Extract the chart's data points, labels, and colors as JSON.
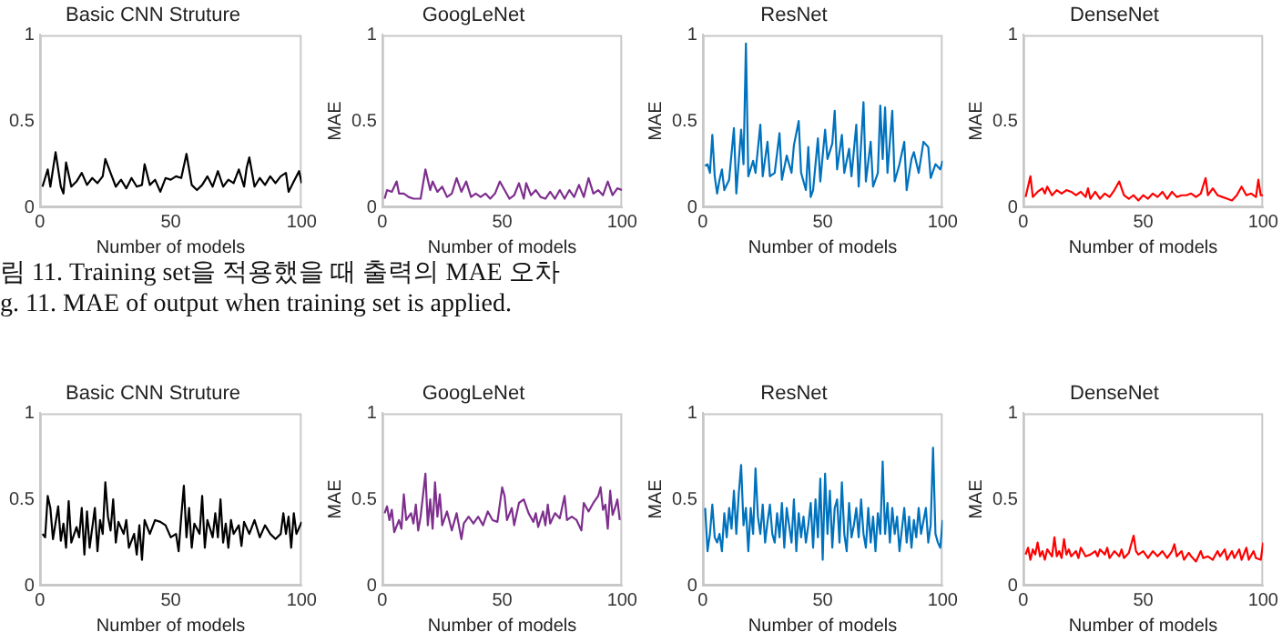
{
  "chart_data": [
    {
      "type": "line",
      "title": "Basic CNN Struture",
      "xlabel": "Number of models",
      "xlim": [
        0,
        100
      ],
      "xticks": [
        0,
        50,
        100
      ],
      "ylim": [
        0,
        1
      ],
      "yticks": [
        0,
        0.5,
        1
      ],
      "grid": false,
      "legend": false,
      "annotations": [
        "림 11. Training set을 적용했을 때 출력의 MAE 오차",
        "g. 11. MAE of output when training set is applied."
      ],
      "series": [
        {
          "color": "#000000",
          "x": [
            1,
            3,
            4,
            6,
            8,
            9,
            10,
            12,
            14,
            16,
            18,
            20,
            22,
            24,
            25,
            27,
            29,
            31,
            33,
            35,
            37,
            39,
            40,
            42,
            44,
            46,
            48,
            50,
            52,
            54,
            56,
            58,
            60,
            62,
            64,
            66,
            68,
            70,
            72,
            74,
            76,
            78,
            79,
            80,
            82,
            84,
            86,
            88,
            90,
            92,
            94,
            95,
            97,
            99,
            100
          ],
          "values": [
            0.12,
            0.22,
            0.12,
            0.32,
            0.12,
            0.08,
            0.26,
            0.12,
            0.15,
            0.2,
            0.13,
            0.17,
            0.14,
            0.18,
            0.28,
            0.2,
            0.12,
            0.16,
            0.11,
            0.17,
            0.12,
            0.13,
            0.25,
            0.13,
            0.16,
            0.09,
            0.17,
            0.16,
            0.18,
            0.17,
            0.31,
            0.13,
            0.1,
            0.13,
            0.18,
            0.12,
            0.21,
            0.12,
            0.16,
            0.14,
            0.22,
            0.12,
            0.23,
            0.29,
            0.12,
            0.17,
            0.13,
            0.18,
            0.14,
            0.18,
            0.2,
            0.09,
            0.15,
            0.21,
            0.14
          ]
        }
      ]
    },
    {
      "type": "line",
      "title": "GoogLeNet",
      "xlabel": "Number of models",
      "ylabel": "MAE",
      "xlim": [
        0,
        100
      ],
      "xticks": [
        0,
        50,
        100
      ],
      "ylim": [
        0,
        1
      ],
      "yticks": [
        0,
        0.5,
        1
      ],
      "grid": false,
      "legend": false,
      "series": [
        {
          "color": "#7e2f8e",
          "x": [
            1,
            2,
            4,
            6,
            7,
            9,
            11,
            13,
            16,
            18,
            20,
            21,
            23,
            25,
            27,
            29,
            31,
            33,
            35,
            37,
            39,
            41,
            43,
            45,
            47,
            49,
            51,
            53,
            55,
            57,
            59,
            60,
            62,
            64,
            66,
            68,
            70,
            72,
            74,
            76,
            78,
            80,
            82,
            84,
            86,
            88,
            90,
            92,
            94,
            96,
            98,
            100
          ],
          "values": [
            0.05,
            0.1,
            0.09,
            0.15,
            0.08,
            0.08,
            0.06,
            0.05,
            0.05,
            0.22,
            0.1,
            0.15,
            0.09,
            0.12,
            0.06,
            0.08,
            0.17,
            0.09,
            0.15,
            0.06,
            0.08,
            0.06,
            0.08,
            0.05,
            0.08,
            0.15,
            0.1,
            0.05,
            0.07,
            0.14,
            0.05,
            0.14,
            0.07,
            0.1,
            0.06,
            0.05,
            0.09,
            0.05,
            0.1,
            0.05,
            0.1,
            0.06,
            0.13,
            0.06,
            0.17,
            0.08,
            0.1,
            0.07,
            0.15,
            0.07,
            0.11,
            0.1
          ]
        }
      ]
    },
    {
      "type": "line",
      "title": "ResNet",
      "xlabel": "Number of models",
      "ylabel": "MAE",
      "xlim": [
        0,
        100
      ],
      "xticks": [
        0,
        50,
        100
      ],
      "ylim": [
        0,
        1
      ],
      "yticks": [
        0,
        0.5,
        1
      ],
      "grid": false,
      "legend": false,
      "series": [
        {
          "color": "#0072bd",
          "x": [
            1,
            2,
            3,
            4,
            5,
            6,
            7,
            8,
            9,
            11,
            13,
            14,
            16,
            17,
            18,
            19,
            21,
            22,
            24,
            25,
            27,
            28,
            30,
            32,
            33,
            35,
            37,
            38,
            40,
            41,
            43,
            44,
            45,
            46,
            48,
            49,
            51,
            52,
            54,
            55,
            56,
            58,
            59,
            61,
            62,
            64,
            65,
            67,
            68,
            70,
            71,
            73,
            74,
            75,
            76,
            77,
            79,
            80,
            82,
            84,
            85,
            87,
            88,
            90,
            92,
            94,
            95,
            97,
            99,
            100
          ],
          "values": [
            0.24,
            0.25,
            0.2,
            0.42,
            0.18,
            0.08,
            0.16,
            0.22,
            0.1,
            0.16,
            0.46,
            0.08,
            0.45,
            0.25,
            0.95,
            0.18,
            0.27,
            0.2,
            0.48,
            0.18,
            0.38,
            0.18,
            0.2,
            0.43,
            0.16,
            0.3,
            0.2,
            0.36,
            0.5,
            0.2,
            0.1,
            0.35,
            0.06,
            0.1,
            0.4,
            0.15,
            0.45,
            0.28,
            0.37,
            0.56,
            0.22,
            0.42,
            0.2,
            0.34,
            0.18,
            0.48,
            0.12,
            0.61,
            0.15,
            0.38,
            0.12,
            0.2,
            0.59,
            0.28,
            0.58,
            0.2,
            0.56,
            0.15,
            0.25,
            0.38,
            0.1,
            0.28,
            0.32,
            0.2,
            0.38,
            0.35,
            0.17,
            0.25,
            0.22,
            0.27
          ]
        }
      ]
    },
    {
      "type": "line",
      "title": "DenseNet",
      "xlabel": "Number of models",
      "ylabel": "MAE",
      "xlim": [
        0,
        100
      ],
      "xticks": [
        0,
        50,
        100
      ],
      "ylim": [
        0,
        1
      ],
      "yticks": [
        0,
        0.5,
        1
      ],
      "grid": false,
      "legend": false,
      "series": [
        {
          "color": "#ff0000",
          "x": [
            1,
            3,
            4,
            6,
            8,
            9,
            10,
            12,
            14,
            16,
            18,
            20,
            22,
            24,
            26,
            27,
            28,
            30,
            32,
            34,
            36,
            38,
            40,
            42,
            44,
            46,
            48,
            50,
            52,
            54,
            56,
            58,
            60,
            62,
            64,
            66,
            68,
            70,
            72,
            74,
            76,
            77,
            79,
            81,
            83,
            85,
            87,
            89,
            91,
            93,
            95,
            97,
            98,
            99,
            100
          ],
          "values": [
            0.06,
            0.18,
            0.06,
            0.09,
            0.11,
            0.08,
            0.12,
            0.07,
            0.1,
            0.08,
            0.1,
            0.09,
            0.07,
            0.09,
            0.06,
            0.11,
            0.05,
            0.09,
            0.05,
            0.08,
            0.06,
            0.1,
            0.15,
            0.07,
            0.05,
            0.07,
            0.04,
            0.07,
            0.05,
            0.08,
            0.06,
            0.09,
            0.05,
            0.09,
            0.06,
            0.07,
            0.07,
            0.08,
            0.06,
            0.08,
            0.17,
            0.07,
            0.11,
            0.07,
            0.06,
            0.05,
            0.04,
            0.07,
            0.12,
            0.07,
            0.08,
            0.06,
            0.16,
            0.07,
            0.07
          ]
        }
      ]
    },
    {
      "type": "line",
      "title": "Basic CNN Struture",
      "xlabel": "Number of models",
      "xlim": [
        0,
        100
      ],
      "xticks": [
        0,
        50,
        100
      ],
      "ylim": [
        0,
        1
      ],
      "yticks": [
        0,
        0.5,
        1
      ],
      "grid": false,
      "legend": false,
      "series": [
        {
          "color": "#000000",
          "x": [
            1,
            2,
            3,
            4,
            5,
            7,
            8,
            9,
            10,
            11,
            12,
            14,
            15,
            16,
            17,
            18,
            19,
            21,
            22,
            23,
            24,
            25,
            26,
            27,
            28,
            29,
            30,
            32,
            33,
            34,
            36,
            37,
            38,
            39,
            40,
            42,
            44,
            46,
            48,
            50,
            52,
            53,
            54,
            55,
            56,
            57,
            58,
            59,
            61,
            62,
            63,
            64,
            66,
            67,
            68,
            69,
            70,
            71,
            72,
            73,
            74,
            76,
            77,
            78,
            80,
            82,
            84,
            86,
            88,
            90,
            92,
            93,
            94,
            95,
            96,
            97,
            98,
            100
          ],
          "values": [
            0.3,
            0.28,
            0.52,
            0.45,
            0.27,
            0.46,
            0.26,
            0.36,
            0.22,
            0.49,
            0.25,
            0.34,
            0.28,
            0.45,
            0.18,
            0.43,
            0.22,
            0.45,
            0.2,
            0.38,
            0.3,
            0.6,
            0.4,
            0.32,
            0.5,
            0.25,
            0.37,
            0.3,
            0.38,
            0.22,
            0.3,
            0.18,
            0.35,
            0.15,
            0.38,
            0.3,
            0.38,
            0.37,
            0.35,
            0.28,
            0.3,
            0.2,
            0.4,
            0.58,
            0.28,
            0.45,
            0.22,
            0.36,
            0.3,
            0.52,
            0.22,
            0.38,
            0.28,
            0.42,
            0.28,
            0.5,
            0.25,
            0.36,
            0.22,
            0.38,
            0.3,
            0.35,
            0.23,
            0.37,
            0.3,
            0.38,
            0.28,
            0.35,
            0.3,
            0.27,
            0.3,
            0.42,
            0.3,
            0.4,
            0.22,
            0.42,
            0.3,
            0.37
          ]
        }
      ]
    },
    {
      "type": "line",
      "title": "GoogLeNet",
      "xlabel": "Number of models",
      "ylabel": "MAE",
      "xlim": [
        0,
        100
      ],
      "xticks": [
        0,
        50,
        100
      ],
      "ylim": [
        0,
        1
      ],
      "yticks": [
        0,
        0.5,
        1
      ],
      "grid": false,
      "legend": false,
      "series": [
        {
          "color": "#7e2f8e",
          "x": [
            1,
            2,
            3,
            4,
            5,
            7,
            8,
            9,
            10,
            12,
            13,
            14,
            15,
            16,
            18,
            19,
            20,
            21,
            22,
            23,
            24,
            25,
            27,
            29,
            31,
            33,
            34,
            36,
            38,
            40,
            42,
            44,
            46,
            48,
            50,
            51,
            52,
            54,
            55,
            57,
            59,
            61,
            63,
            64,
            65,
            67,
            68,
            69,
            70,
            72,
            74,
            76,
            77,
            79,
            81,
            83,
            84,
            86,
            88,
            90,
            91,
            92,
            93,
            94,
            95,
            96,
            97,
            98,
            99
          ],
          "values": [
            0.42,
            0.46,
            0.38,
            0.44,
            0.31,
            0.38,
            0.33,
            0.53,
            0.38,
            0.42,
            0.36,
            0.47,
            0.32,
            0.4,
            0.65,
            0.35,
            0.5,
            0.33,
            0.6,
            0.4,
            0.53,
            0.35,
            0.43,
            0.32,
            0.42,
            0.27,
            0.36,
            0.4,
            0.36,
            0.4,
            0.35,
            0.43,
            0.38,
            0.37,
            0.57,
            0.52,
            0.38,
            0.45,
            0.35,
            0.48,
            0.5,
            0.42,
            0.37,
            0.42,
            0.34,
            0.43,
            0.35,
            0.47,
            0.36,
            0.42,
            0.39,
            0.52,
            0.38,
            0.4,
            0.38,
            0.32,
            0.48,
            0.43,
            0.48,
            0.52,
            0.57,
            0.44,
            0.47,
            0.33,
            0.55,
            0.41,
            0.45,
            0.5,
            0.38
          ]
        }
      ]
    },
    {
      "type": "line",
      "title": "ResNet",
      "xlabel": "Number of models",
      "ylabel": "MAE",
      "xlim": [
        0,
        100
      ],
      "xticks": [
        0,
        50,
        100
      ],
      "ylim": [
        0,
        1
      ],
      "yticks": [
        0,
        0.5,
        1
      ],
      "grid": false,
      "legend": false,
      "series": [
        {
          "color": "#0072bd",
          "x": [
            1,
            2,
            3,
            4,
            5,
            6,
            7,
            8,
            9,
            10,
            11,
            12,
            13,
            14,
            15,
            16,
            17,
            18,
            19,
            20,
            21,
            22,
            23,
            24,
            25,
            26,
            27,
            28,
            29,
            30,
            31,
            32,
            33,
            34,
            35,
            36,
            37,
            38,
            39,
            40,
            41,
            42,
            43,
            44,
            45,
            46,
            47,
            48,
            49,
            50,
            51,
            52,
            53,
            54,
            55,
            56,
            57,
            58,
            59,
            60,
            61,
            62,
            63,
            64,
            65,
            66,
            67,
            68,
            69,
            70,
            71,
            72,
            73,
            74,
            75,
            76,
            77,
            78,
            79,
            80,
            81,
            82,
            84,
            85,
            86,
            87,
            88,
            89,
            90,
            91,
            93,
            94,
            95,
            96,
            97,
            98,
            99,
            100
          ],
          "values": [
            0.45,
            0.2,
            0.3,
            0.47,
            0.28,
            0.25,
            0.3,
            0.2,
            0.42,
            0.28,
            0.45,
            0.33,
            0.55,
            0.3,
            0.53,
            0.7,
            0.35,
            0.45,
            0.2,
            0.45,
            0.3,
            0.68,
            0.4,
            0.3,
            0.47,
            0.25,
            0.37,
            0.47,
            0.3,
            0.25,
            0.42,
            0.28,
            0.48,
            0.22,
            0.45,
            0.35,
            0.25,
            0.5,
            0.2,
            0.42,
            0.28,
            0.4,
            0.25,
            0.35,
            0.48,
            0.22,
            0.5,
            0.28,
            0.62,
            0.15,
            0.65,
            0.3,
            0.55,
            0.22,
            0.45,
            0.5,
            0.25,
            0.6,
            0.3,
            0.2,
            0.48,
            0.28,
            0.35,
            0.45,
            0.28,
            0.5,
            0.3,
            0.22,
            0.45,
            0.25,
            0.4,
            0.2,
            0.42,
            0.3,
            0.72,
            0.3,
            0.48,
            0.25,
            0.45,
            0.3,
            0.4,
            0.2,
            0.45,
            0.25,
            0.4,
            0.22,
            0.38,
            0.28,
            0.45,
            0.3,
            0.45,
            0.25,
            0.35,
            0.8,
            0.3,
            0.25,
            0.22,
            0.38
          ]
        }
      ]
    },
    {
      "type": "line",
      "title": "DenseNet",
      "xlabel": "Number of models",
      "ylabel": "MAE",
      "xlim": [
        0,
        100
      ],
      "xticks": [
        0,
        50,
        100
      ],
      "ylim": [
        0,
        1
      ],
      "yticks": [
        0,
        0.5,
        1
      ],
      "grid": false,
      "legend": false,
      "series": [
        {
          "color": "#ff0000",
          "x": [
            1,
            2,
            3,
            4,
            5,
            6,
            7,
            8,
            9,
            10,
            12,
            13,
            14,
            15,
            16,
            17,
            18,
            19,
            20,
            22,
            23,
            24,
            26,
            28,
            30,
            31,
            32,
            34,
            35,
            36,
            38,
            40,
            41,
            42,
            44,
            46,
            47,
            48,
            50,
            52,
            54,
            56,
            58,
            60,
            62,
            63,
            64,
            66,
            67,
            69,
            70,
            72,
            74,
            75,
            77,
            79,
            81,
            82,
            84,
            85,
            87,
            88,
            90,
            91,
            93,
            94,
            96,
            97,
            99,
            100
          ],
          "values": [
            0.18,
            0.22,
            0.15,
            0.21,
            0.18,
            0.25,
            0.17,
            0.2,
            0.15,
            0.21,
            0.17,
            0.28,
            0.17,
            0.2,
            0.16,
            0.27,
            0.18,
            0.21,
            0.17,
            0.2,
            0.16,
            0.22,
            0.17,
            0.18,
            0.2,
            0.17,
            0.21,
            0.18,
            0.22,
            0.16,
            0.2,
            0.17,
            0.21,
            0.16,
            0.19,
            0.29,
            0.2,
            0.18,
            0.2,
            0.16,
            0.2,
            0.17,
            0.2,
            0.16,
            0.2,
            0.24,
            0.17,
            0.2,
            0.15,
            0.19,
            0.17,
            0.14,
            0.2,
            0.16,
            0.17,
            0.15,
            0.2,
            0.17,
            0.21,
            0.15,
            0.2,
            0.16,
            0.21,
            0.15,
            0.22,
            0.15,
            0.2,
            0.16,
            0.15,
            0.25
          ]
        }
      ]
    }
  ]
}
